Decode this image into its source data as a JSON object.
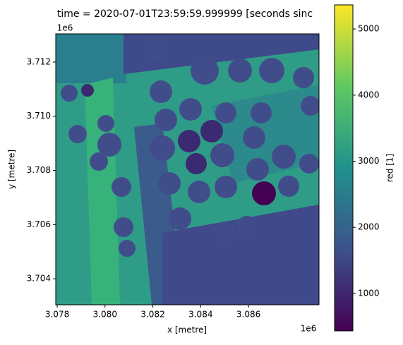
{
  "chart_data": {
    "type": "image",
    "title": "time = 2020-07-01T23:59:59.999999 [seconds sinc",
    "xlabel": "x [metre]",
    "ylabel": "y [metre]",
    "x_offset_label": "1e6",
    "y_offset_label": "1e6",
    "xlim": [
      3.07794,
      3.08895
    ],
    "xticks": [
      3.078,
      {
        "value": 3.08,
        "label": "3.080"
      },
      3.082,
      3.084,
      3.086
    ],
    "ylim": [
      3.70304,
      3.71304
    ],
    "yticks": [
      3.704,
      3.706,
      3.708,
      {
        "value": 3.71,
        "label": "3.710"
      },
      3.712
    ],
    "colorbar": {
      "label": "red [1]",
      "lim": [
        433,
        5364
      ],
      "ticks": [
        1000,
        2000,
        3000,
        4000,
        5000
      ],
      "colormap": [
        "#440154",
        "#3b528b",
        "#21918c",
        "#5ec962",
        "#fde725"
      ]
    }
  }
}
